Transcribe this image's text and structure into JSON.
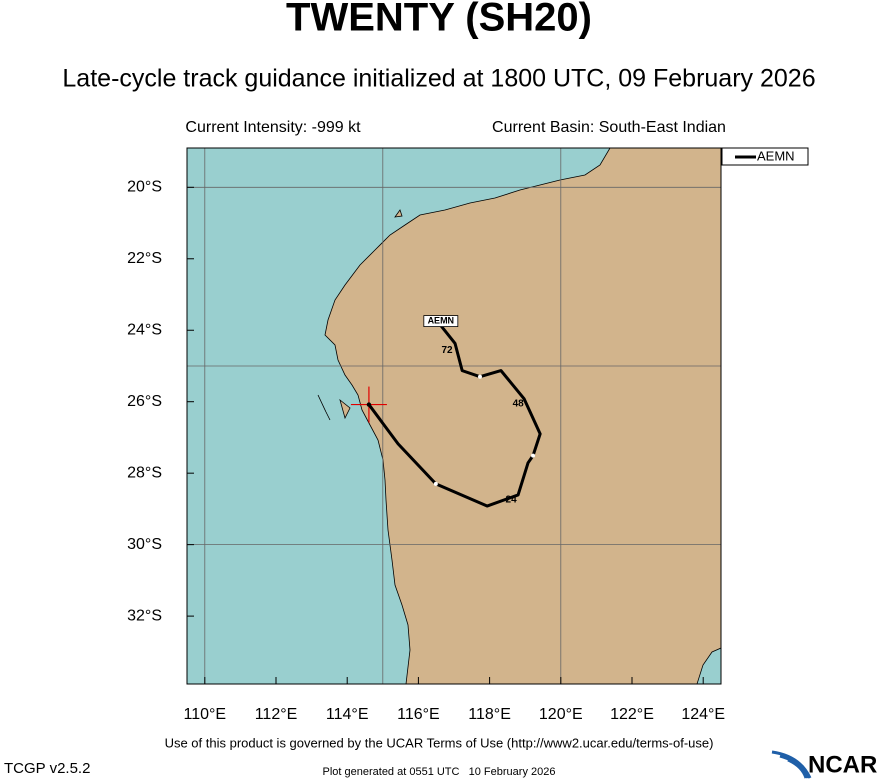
{
  "chart_data": {
    "type": "track",
    "title": "TWENTY (SH20)",
    "subtitle": "Late-cycle track guidance initialized at 1800 UTC, 09 February 2026",
    "info_left": "Current Intensity: -999 kt",
    "info_right": "Current Basin: South-East Indian",
    "footer": "Use of this product is governed by the UCAR Terms of Use (http://www2.ucar.edu/terms-of-use)",
    "version": "TCGP v2.5.2",
    "generated": "Plot generated at 0551 UTC   10 February 2026",
    "logo": "NCAR",
    "xlim": [
      109.5,
      124.5
    ],
    "ylim": [
      -33.9,
      -18.9
    ],
    "xticks": [
      {
        "value": 110,
        "label": "110°E"
      },
      {
        "value": 112,
        "label": "112°E"
      },
      {
        "value": 114,
        "label": "114°E"
      },
      {
        "value": 116,
        "label": "116°E"
      },
      {
        "value": 118,
        "label": "118°E"
      },
      {
        "value": 120,
        "label": "120°E"
      },
      {
        "value": 122,
        "label": "122°E"
      },
      {
        "value": 124,
        "label": "124°E"
      }
    ],
    "yticks": [
      {
        "value": -20,
        "label": "20°S"
      },
      {
        "value": -22,
        "label": "22°S"
      },
      {
        "value": -24,
        "label": "24°S"
      },
      {
        "value": -26,
        "label": "26°S"
      },
      {
        "value": -28,
        "label": "28°S"
      },
      {
        "value": -30,
        "label": "30°S"
      },
      {
        "value": -32,
        "label": "32°S"
      }
    ],
    "grid_x": [
      110,
      115,
      120
    ],
    "grid_y": [
      -20,
      -25,
      -30
    ],
    "hour_labels": [
      "24",
      "48",
      "72"
    ],
    "series": [
      {
        "name": "AEMN",
        "color": "#000000",
        "x": [
          114.61,
          115.43,
          116.49,
          117.93,
          118.8,
          119.08,
          119.22,
          119.42,
          118.97,
          118.32,
          117.73,
          117.23,
          117.03,
          116.63
        ],
        "values": [
          -26.08,
          -27.18,
          -28.3,
          -28.92,
          -28.61,
          -27.71,
          -27.51,
          -26.9,
          -25.92,
          -25.13,
          -25.3,
          -25.13,
          -24.37,
          -23.87
        ]
      }
    ]
  }
}
